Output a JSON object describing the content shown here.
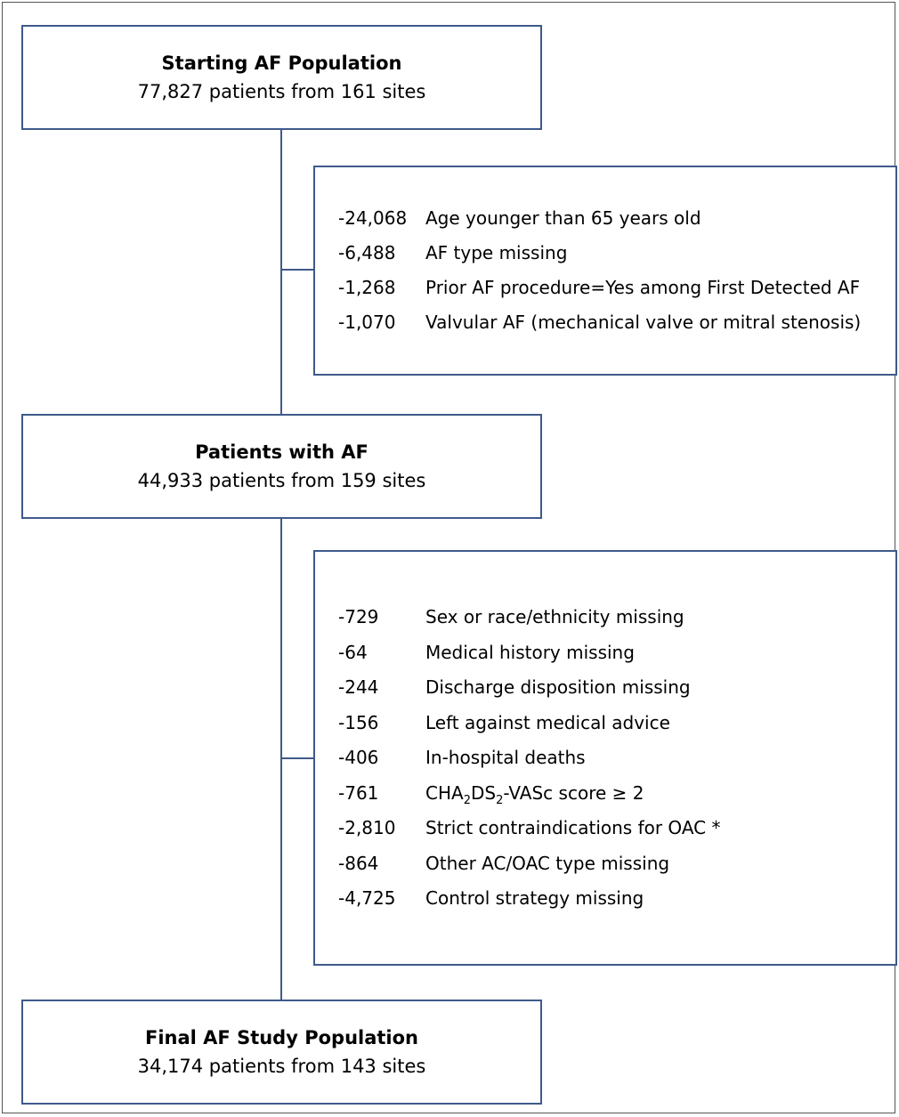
{
  "boxes": {
    "start": {
      "title": "Starting AF Population",
      "subtitle": "77,827 patients from 161 sites"
    },
    "middle": {
      "title": "Patients with AF",
      "subtitle": "44,933 patients from 159 sites"
    },
    "final": {
      "title": "Final AF Study Population",
      "subtitle": "34,174 patients from 143 sites"
    }
  },
  "exclusions_1": [
    {
      "count": "-24,068",
      "label": "Age younger than 65 years old"
    },
    {
      "count": "-6,488",
      "label": "AF type missing"
    },
    {
      "count": "-1,268",
      "label": "Prior AF procedure=Yes among First Detected AF"
    },
    {
      "count": "-1,070",
      "label": "Valvular AF (mechanical valve or mitral stenosis)"
    }
  ],
  "exclusions_2": [
    {
      "count": "-729",
      "label": "Sex or race/ethnicity missing"
    },
    {
      "count": "-64",
      "label": "Medical history missing"
    },
    {
      "count": "-244",
      "label": "Discharge disposition missing"
    },
    {
      "count": "-156",
      "label": "Left against medical advice"
    },
    {
      "count": "-406",
      "label": "In-hospital deaths"
    },
    {
      "count": "-761",
      "label_parts": [
        "CHA",
        "2",
        "DS",
        "2",
        "-VASc score ≥ 2"
      ]
    },
    {
      "count": "-2,810",
      "label": "Strict contraindications for OAC *"
    },
    {
      "count": "-864",
      "label": "Other AC/OAC type missing"
    },
    {
      "count": "-4,725",
      "label": "Control strategy missing"
    }
  ],
  "colors": {
    "box_border": "#3f5a8a",
    "connector": "#3f5a8a",
    "text": "#000000"
  }
}
